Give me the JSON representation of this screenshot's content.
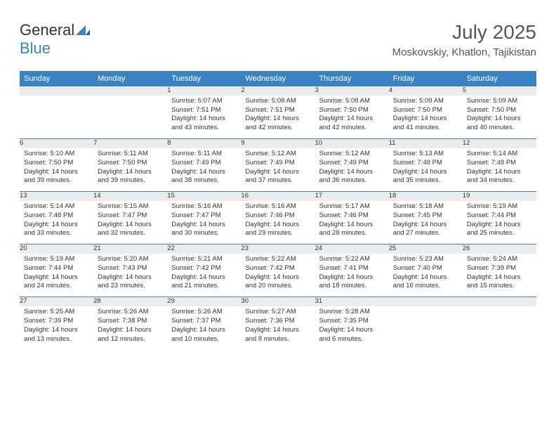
{
  "logo": {
    "word1": "General",
    "word2": "Blue"
  },
  "title": "July 2025",
  "location": "Moskovskiy, Khatlon, Tajikistan",
  "colors": {
    "header_bg": "#3b82c4",
    "header_text": "#ffffff",
    "daynum_bg": "#ececec",
    "week_border": "#3b82c4",
    "text": "#333333",
    "logo_mark": "#3b82c4"
  },
  "fonts": {
    "title_size": 28,
    "location_size": 15,
    "th_size": 11,
    "cell_size": 9.5,
    "daynum_size": 11
  },
  "dayNames": [
    "Sunday",
    "Monday",
    "Tuesday",
    "Wednesday",
    "Thursday",
    "Friday",
    "Saturday"
  ],
  "weeks": [
    [
      null,
      null,
      {
        "n": "1",
        "sunrise": "5:07 AM",
        "sunset": "7:51 PM",
        "daylight": "14 hours and 43 minutes."
      },
      {
        "n": "2",
        "sunrise": "5:08 AM",
        "sunset": "7:51 PM",
        "daylight": "14 hours and 42 minutes."
      },
      {
        "n": "3",
        "sunrise": "5:08 AM",
        "sunset": "7:50 PM",
        "daylight": "14 hours and 42 minutes."
      },
      {
        "n": "4",
        "sunrise": "5:09 AM",
        "sunset": "7:50 PM",
        "daylight": "14 hours and 41 minutes."
      },
      {
        "n": "5",
        "sunrise": "5:09 AM",
        "sunset": "7:50 PM",
        "daylight": "14 hours and 40 minutes."
      }
    ],
    [
      {
        "n": "6",
        "sunrise": "5:10 AM",
        "sunset": "7:50 PM",
        "daylight": "14 hours and 39 minutes."
      },
      {
        "n": "7",
        "sunrise": "5:11 AM",
        "sunset": "7:50 PM",
        "daylight": "14 hours and 39 minutes."
      },
      {
        "n": "8",
        "sunrise": "5:11 AM",
        "sunset": "7:49 PM",
        "daylight": "14 hours and 38 minutes."
      },
      {
        "n": "9",
        "sunrise": "5:12 AM",
        "sunset": "7:49 PM",
        "daylight": "14 hours and 37 minutes."
      },
      {
        "n": "10",
        "sunrise": "5:12 AM",
        "sunset": "7:49 PM",
        "daylight": "14 hours and 36 minutes."
      },
      {
        "n": "11",
        "sunrise": "5:13 AM",
        "sunset": "7:48 PM",
        "daylight": "14 hours and 35 minutes."
      },
      {
        "n": "12",
        "sunrise": "5:14 AM",
        "sunset": "7:48 PM",
        "daylight": "14 hours and 34 minutes."
      }
    ],
    [
      {
        "n": "13",
        "sunrise": "5:14 AM",
        "sunset": "7:48 PM",
        "daylight": "14 hours and 33 minutes."
      },
      {
        "n": "14",
        "sunrise": "5:15 AM",
        "sunset": "7:47 PM",
        "daylight": "14 hours and 32 minutes."
      },
      {
        "n": "15",
        "sunrise": "5:16 AM",
        "sunset": "7:47 PM",
        "daylight": "14 hours and 30 minutes."
      },
      {
        "n": "16",
        "sunrise": "5:16 AM",
        "sunset": "7:46 PM",
        "daylight": "14 hours and 29 minutes."
      },
      {
        "n": "17",
        "sunrise": "5:17 AM",
        "sunset": "7:46 PM",
        "daylight": "14 hours and 28 minutes."
      },
      {
        "n": "18",
        "sunrise": "5:18 AM",
        "sunset": "7:45 PM",
        "daylight": "14 hours and 27 minutes."
      },
      {
        "n": "19",
        "sunrise": "5:19 AM",
        "sunset": "7:44 PM",
        "daylight": "14 hours and 25 minutes."
      }
    ],
    [
      {
        "n": "20",
        "sunrise": "5:19 AM",
        "sunset": "7:44 PM",
        "daylight": "14 hours and 24 minutes."
      },
      {
        "n": "21",
        "sunrise": "5:20 AM",
        "sunset": "7:43 PM",
        "daylight": "14 hours and 23 minutes."
      },
      {
        "n": "22",
        "sunrise": "5:21 AM",
        "sunset": "7:42 PM",
        "daylight": "14 hours and 21 minutes."
      },
      {
        "n": "23",
        "sunrise": "5:22 AM",
        "sunset": "7:42 PM",
        "daylight": "14 hours and 20 minutes."
      },
      {
        "n": "24",
        "sunrise": "5:22 AM",
        "sunset": "7:41 PM",
        "daylight": "14 hours and 18 minutes."
      },
      {
        "n": "25",
        "sunrise": "5:23 AM",
        "sunset": "7:40 PM",
        "daylight": "14 hours and 16 minutes."
      },
      {
        "n": "26",
        "sunrise": "5:24 AM",
        "sunset": "7:39 PM",
        "daylight": "14 hours and 15 minutes."
      }
    ],
    [
      {
        "n": "27",
        "sunrise": "5:25 AM",
        "sunset": "7:39 PM",
        "daylight": "14 hours and 13 minutes."
      },
      {
        "n": "28",
        "sunrise": "5:26 AM",
        "sunset": "7:38 PM",
        "daylight": "14 hours and 12 minutes."
      },
      {
        "n": "29",
        "sunrise": "5:26 AM",
        "sunset": "7:37 PM",
        "daylight": "14 hours and 10 minutes."
      },
      {
        "n": "30",
        "sunrise": "5:27 AM",
        "sunset": "7:36 PM",
        "daylight": "14 hours and 8 minutes."
      },
      {
        "n": "31",
        "sunrise": "5:28 AM",
        "sunset": "7:35 PM",
        "daylight": "14 hours and 6 minutes."
      },
      null,
      null
    ]
  ],
  "labels": {
    "sunrise": "Sunrise:",
    "sunset": "Sunset:",
    "daylight": "Daylight:"
  }
}
